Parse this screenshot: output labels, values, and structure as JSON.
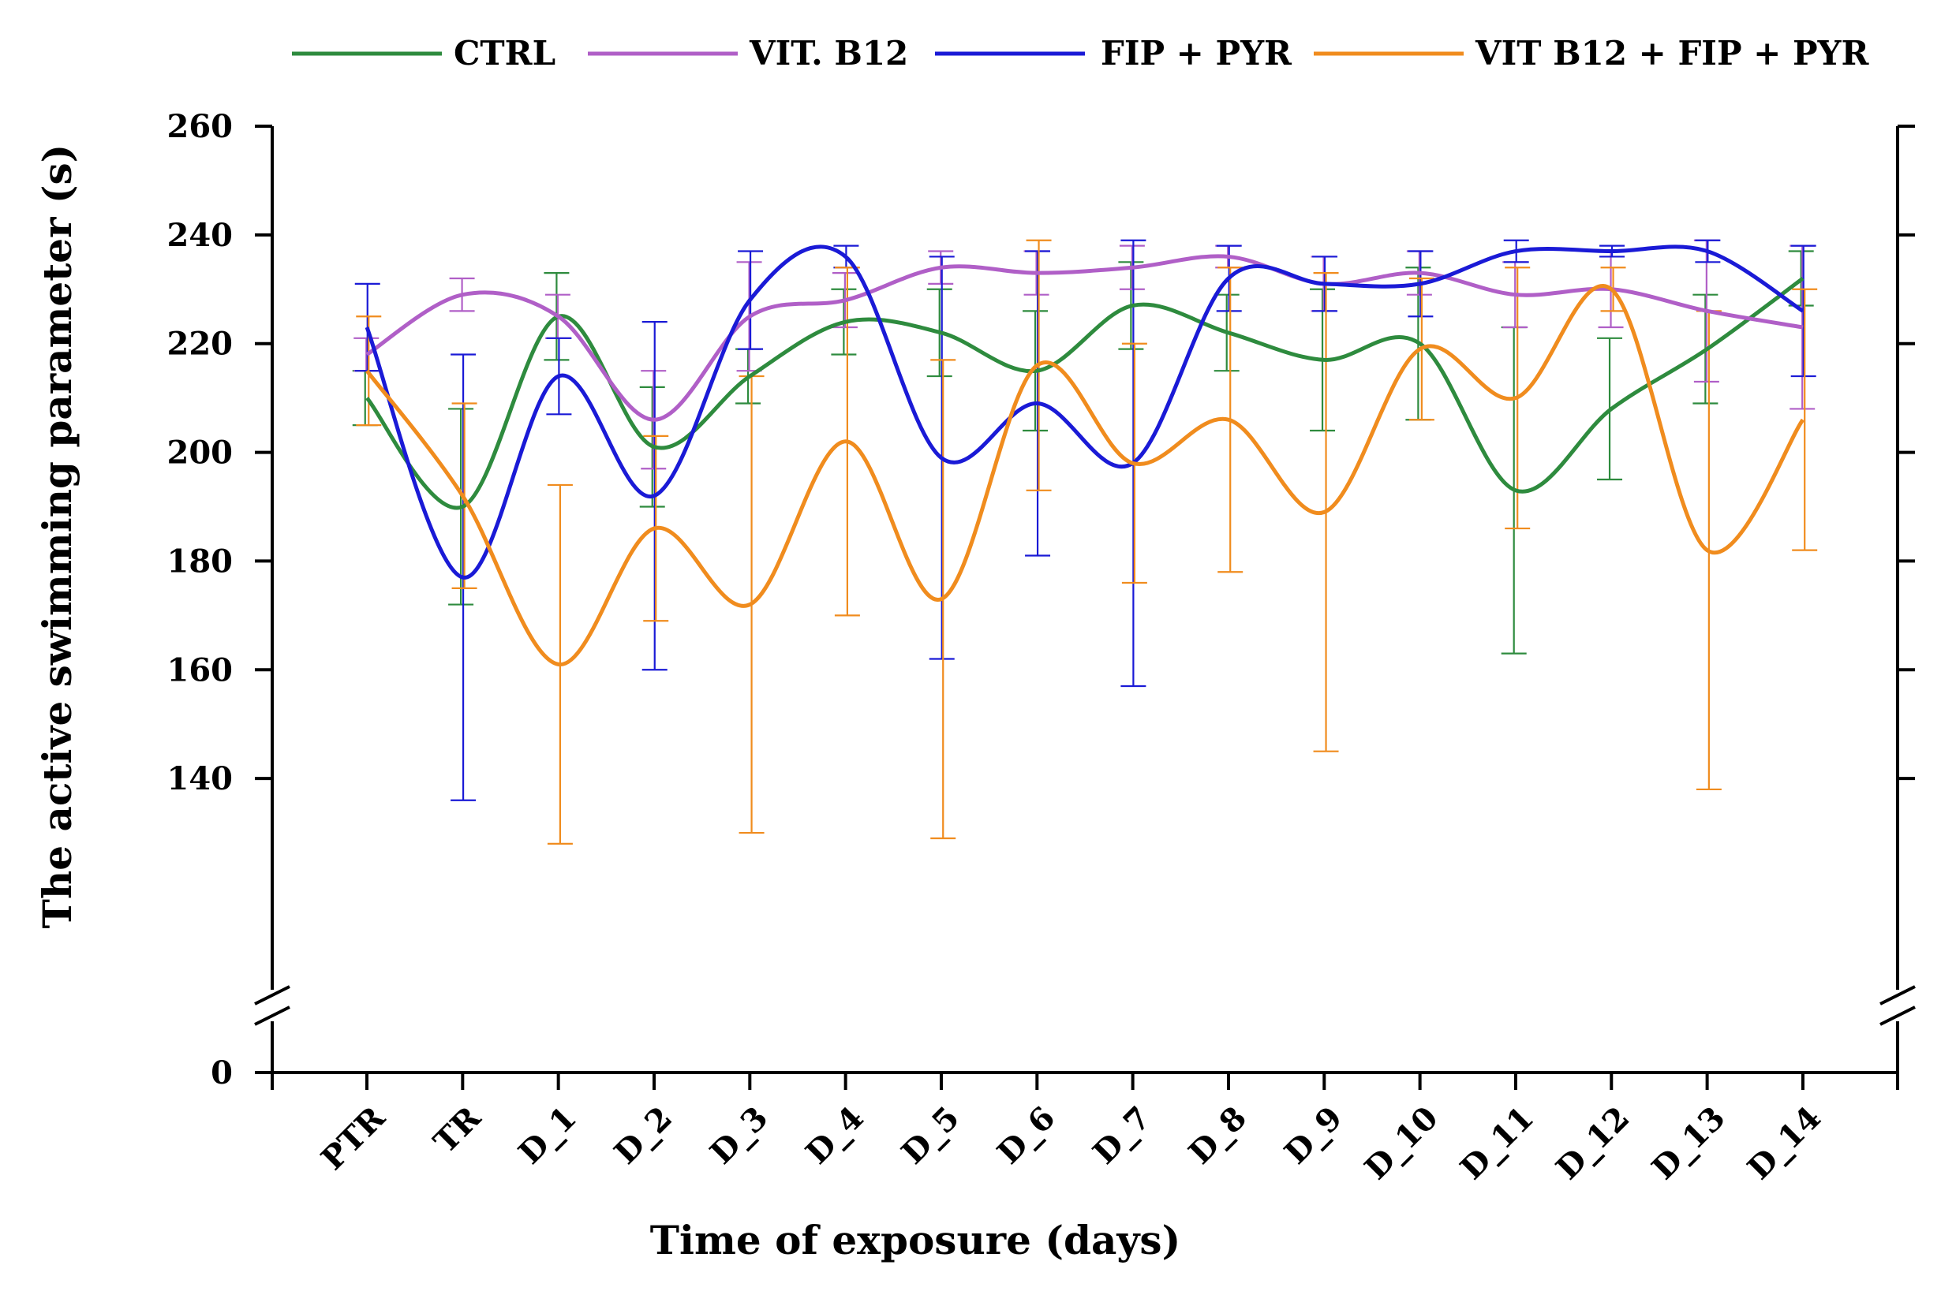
{
  "chart_data": {
    "type": "line",
    "title": "",
    "xlabel": "Time of exposure (days)",
    "ylabel": "The active swimming parameter (s)",
    "categories": [
      "PTR",
      "TR",
      "D_1",
      "D_2",
      "D_3",
      "D_4",
      "D_5",
      "D_6",
      "D_7",
      "D_8",
      "D_9",
      "D_10",
      "D_11",
      "D_12",
      "D_13",
      "D_14"
    ],
    "ylim": [
      120,
      260
    ],
    "yticks": [
      140,
      160,
      180,
      200,
      220,
      240,
      260
    ],
    "y_break_label": "0",
    "axis_break": "y-axis broken between 0 and 120",
    "legend_position": "top",
    "series": [
      {
        "name": "CTRL",
        "color": "#2e8b3e",
        "values": [
          210,
          190,
          225,
          201,
          214,
          224,
          222,
          215,
          227,
          222,
          217,
          220,
          193,
          208,
          219,
          232
        ],
        "errors": [
          5,
          18,
          8,
          11,
          5,
          6,
          8,
          11,
          8,
          7,
          13,
          14,
          30,
          13,
          10,
          5
        ]
      },
      {
        "name": "VIT. B12",
        "color": "#b05fc7",
        "values": [
          218,
          229,
          225,
          206,
          225,
          228,
          234,
          233,
          234,
          236,
          231,
          233,
          229,
          230,
          226,
          223
        ],
        "errors": [
          3,
          3,
          4,
          9,
          10,
          5,
          3,
          4,
          4,
          2,
          5,
          4,
          6,
          7,
          13,
          15
        ]
      },
      {
        "name": "FIP + PYR",
        "color": "#1a1ad6",
        "values": [
          223,
          177,
          214,
          192,
          228,
          236,
          199,
          209,
          198,
          232,
          231,
          231,
          237,
          237,
          237,
          226
        ],
        "errors": [
          8,
          41,
          7,
          32,
          9,
          2,
          37,
          28,
          41,
          6,
          5,
          6,
          2,
          1,
          2,
          12
        ]
      },
      {
        "name": "VIT B12 + FIP + PYR",
        "color": "#f08c1e",
        "values": [
          215,
          192,
          161,
          186,
          172,
          202,
          173,
          216,
          198,
          206,
          189,
          219,
          210,
          230,
          182,
          206
        ],
        "errors": [
          10,
          17,
          33,
          17,
          42,
          32,
          44,
          23,
          22,
          28,
          44,
          13,
          24,
          4,
          44,
          24
        ]
      }
    ]
  }
}
